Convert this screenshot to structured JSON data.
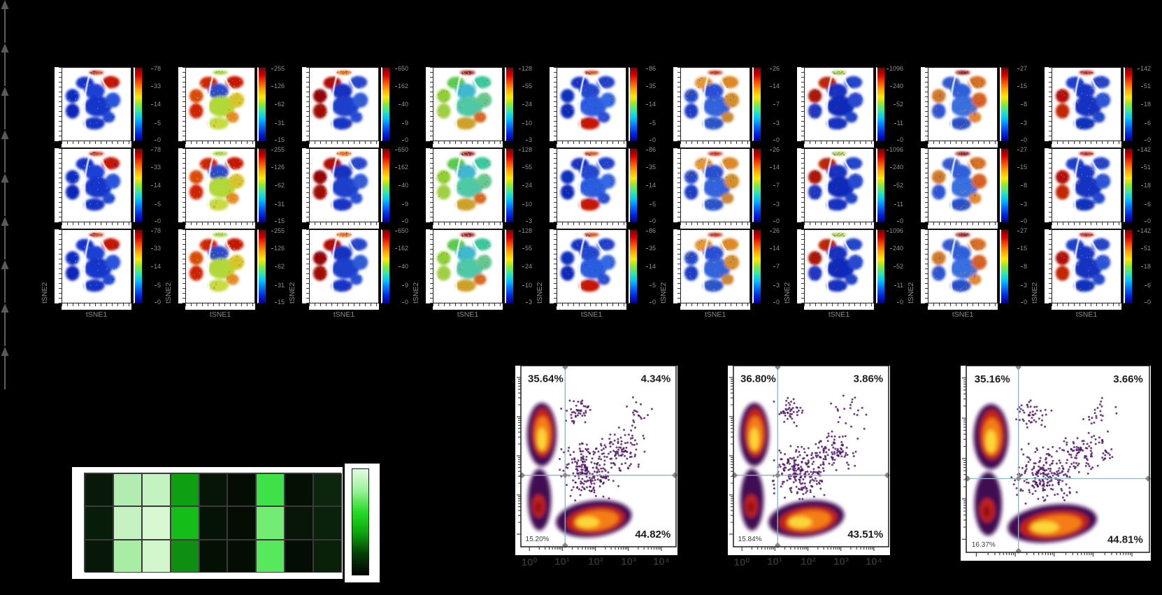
{
  "background": "#000000",
  "tsne": {
    "xlabel": "tSNE1",
    "ylabel": "tSNE2",
    "rows": 3,
    "colorbar_gradient": [
      "#7a0000",
      "#d40000",
      "#ff4d00",
      "#ffa800",
      "#ffe800",
      "#8fe830",
      "#2fe8b0",
      "#00c2ff",
      "#0070ff",
      "#0028e0",
      "#0000a0"
    ],
    "columns": [
      {
        "ticks": [
          "78",
          "33",
          "14",
          "5",
          "0"
        ],
        "regions": [
          "#d83000",
          "#c81200",
          "#1532cc",
          "#112cc2",
          "#0f28ba",
          "#1c40d6",
          "#1736ca",
          "#2a52dc",
          "#1330c4",
          "#2048d4"
        ],
        "speckle": [
          "#0a20a0",
          "#2860e0",
          "#40c0e8"
        ]
      },
      {
        "ticks": [
          "255",
          "126",
          "62",
          "31",
          "15"
        ],
        "regions": [
          "#9cd428",
          "#c81200",
          "#d02800",
          "#dc4800",
          "#d02000",
          "#2a4ccc",
          "#b0d838",
          "#d8c428",
          "#c8dc40",
          "#e88820"
        ],
        "speckle": [
          "#e05800",
          "#c8d838",
          "#40c8d0"
        ]
      },
      {
        "ticks": [
          "650",
          "162",
          "40",
          "9",
          "0"
        ],
        "regions": [
          "#e06000",
          "#2646cc",
          "#b01000",
          "#980000",
          "#a00800",
          "#1330c0",
          "#1c40cc",
          "#2d5cda",
          "#1534c6",
          "#2a50d6"
        ],
        "speckle": [
          "#0a28b0",
          "#3060e0",
          "#c03000"
        ]
      },
      {
        "ticks": [
          "128",
          "55",
          "24",
          "10",
          "3"
        ],
        "regions": [
          "#8c0000",
          "#38c8a0",
          "#58cc50",
          "#90d030",
          "#a0d040",
          "#40b8d0",
          "#50c8a8",
          "#60c890",
          "#d0a028",
          "#d86820"
        ],
        "speckle": [
          "#d84818",
          "#60d0b0",
          "#c8d040"
        ]
      },
      {
        "ticks": [
          "86",
          "35",
          "14",
          "5",
          "0"
        ],
        "regions": [
          "#d04000",
          "#2040cc",
          "#1532c8",
          "#1130be",
          "#0e2ab8",
          "#2446d0",
          "#2c5ce0",
          "#3468e4",
          "#c81800",
          "#2850d8"
        ],
        "speckle": [
          "#1030b8",
          "#3888e0",
          "#d05010"
        ]
      },
      {
        "ticks": [
          "26",
          "14",
          "7",
          "3",
          "0"
        ],
        "regions": [
          "#c82000",
          "#e08820",
          "#e89830",
          "#2646cc",
          "#1c3cc8",
          "#2850d4",
          "#3264dc",
          "#d89028",
          "#2a54c8",
          "#cc8830"
        ],
        "speckle": [
          "#d88020",
          "#2848c8",
          "#50b0e0"
        ]
      },
      {
        "ticks": [
          "1096",
          "240",
          "52",
          "11",
          "0"
        ],
        "regions": [
          "#a0d040",
          "#2244cc",
          "#c02800",
          "#b01800",
          "#1c38c4",
          "#1532c0",
          "#0f2cba",
          "#2648d0",
          "#1330c2",
          "#1e44cc"
        ],
        "speckle": [
          "#0c28b4",
          "#2850d8",
          "#c83808"
        ]
      },
      {
        "ticks": [
          "27",
          "15",
          "8",
          "3",
          "0"
        ],
        "regions": [
          "#8c0000",
          "#d87020",
          "#3058d0",
          "#d07828",
          "#2a54d8",
          "#2e60dc",
          "#3870e0",
          "#d86020",
          "#2850cc",
          "#e08830"
        ],
        "speckle": [
          "#d87828",
          "#2c54d4",
          "#e09838"
        ]
      },
      {
        "ticks": [
          "142",
          "51",
          "18",
          "6",
          "0"
        ],
        "regions": [
          "#c81800",
          "#2244cc",
          "#1c40cc",
          "#b81000",
          "#c42800",
          "#1734c6",
          "#1330c0",
          "#2a52d8",
          "#1130bc",
          "#2448d0"
        ],
        "speckle": [
          "#1030c0",
          "#40a8e0",
          "#d04010"
        ]
      }
    ]
  },
  "heatmap": {
    "panel": "#ffffff",
    "cell_border": "#3a3a3a",
    "cells": [
      [
        "#08190a",
        "#b2ecb0",
        "#c3f3c0",
        "#0ea012",
        "#061506",
        "#040c04",
        "#3fe148",
        "#051005",
        "#0b260c"
      ],
      [
        "#081c0a",
        "#c5f2c0",
        "#d8f8d2",
        "#14bd17",
        "#051307",
        "#040c04",
        "#73ec74",
        "#071607",
        "#0a220b"
      ],
      [
        "#071808",
        "#a8eda3",
        "#d3f7cd",
        "#0e8f11",
        "#051005",
        "#040c04",
        "#55e95b",
        "#040d05",
        "#092009"
      ]
    ],
    "colorbar_stops": [
      "#e4fbe2",
      "#9df29a",
      "#27dd27",
      "#0ba80b",
      "#053f05",
      "#010501"
    ]
  },
  "flow": {
    "crosshair_color": "#8fb3c7",
    "handle_color": "#8a8a8a",
    "dot_color": "#4a1161",
    "palette": {
      "outer": "#400e52",
      "red": "#c22418",
      "orange": "#f57d15",
      "yellow": "#fbd737",
      "dark_red": "#8f0f14"
    },
    "x_ticks": [
      "10⁰",
      "10¹",
      "10²",
      "10³",
      "10⁴"
    ],
    "plots": [
      {
        "top_left": "35.64%",
        "top_right": "4.34%",
        "bottom_left": "15.20%",
        "bottom_right": "44.82%",
        "x_axis_labels_visible": true
      },
      {
        "top_left": "36.80%",
        "top_right": "3.86%",
        "bottom_left": "15.84%",
        "bottom_right": "43.51%",
        "x_axis_labels_visible": true
      },
      {
        "top_left": "35.16%",
        "top_right": "3.66%",
        "bottom_left": "16.37%",
        "bottom_right": "44.81%",
        "x_axis_labels_visible": false
      }
    ]
  },
  "chart_data": [
    {
      "type": "scatter",
      "name": "tsne-marker-intensity-grid",
      "layout": "3 rows x 9 columns, rows nearly identical per column",
      "xlabel": "tSNE1",
      "ylabel": "tSNE2",
      "colormap": "jet",
      "colorbar_ticks_per_column": [
        [
          78,
          33,
          14,
          5,
          0
        ],
        [
          255,
          126,
          62,
          31,
          15
        ],
        [
          650,
          162,
          40,
          9,
          0
        ],
        [
          128,
          55,
          24,
          10,
          3
        ],
        [
          86,
          35,
          14,
          5,
          0
        ],
        [
          26,
          14,
          7,
          3,
          0
        ],
        [
          1096,
          240,
          52,
          11,
          0
        ],
        [
          27,
          15,
          8,
          3,
          0
        ],
        [
          142,
          51,
          18,
          6,
          0
        ]
      ]
    },
    {
      "type": "heatmap",
      "rows": 3,
      "cols": 9,
      "colormap": "black-green-white",
      "values_normalized": [
        [
          0.08,
          0.82,
          0.85,
          0.52,
          0.06,
          0.03,
          0.68,
          0.04,
          0.12
        ],
        [
          0.08,
          0.86,
          0.9,
          0.58,
          0.05,
          0.03,
          0.75,
          0.06,
          0.1
        ],
        [
          0.07,
          0.78,
          0.88,
          0.48,
          0.04,
          0.03,
          0.7,
          0.04,
          0.09
        ]
      ]
    },
    {
      "type": "scatter",
      "name": "flow-cytometry-density-quadrants",
      "x_scale": "log10",
      "x_range": [
        1,
        10000
      ],
      "x_tick_labels": [
        "10^0",
        "10^1",
        "10^2",
        "10^3",
        "10^4"
      ],
      "plots": [
        {
          "quadrant_percent": {
            "top_left": 35.64,
            "top_right": 4.34,
            "bottom_left": 15.2,
            "bottom_right": 44.82
          }
        },
        {
          "quadrant_percent": {
            "top_left": 36.8,
            "top_right": 3.86,
            "bottom_left": 15.84,
            "bottom_right": 43.51
          }
        },
        {
          "quadrant_percent": {
            "top_left": 35.16,
            "top_right": 3.66,
            "bottom_left": 16.37,
            "bottom_right": 44.81
          }
        }
      ]
    }
  ]
}
